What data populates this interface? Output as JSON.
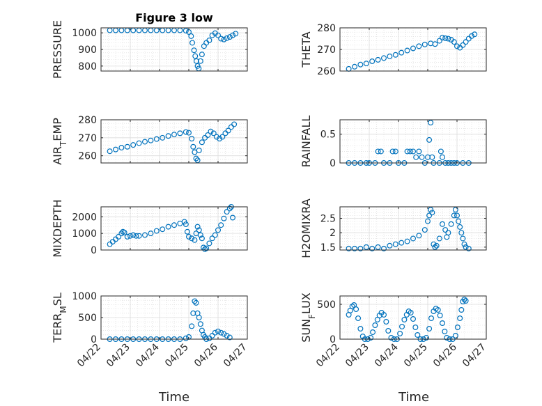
{
  "figure": {
    "title": "Figure 3 low",
    "marker_color": "#0072BD",
    "x_tick_labels": [
      "04/22",
      "04/23",
      "04/24",
      "04/25",
      "04/26",
      "04/27"
    ],
    "x_axis_label": "Time"
  },
  "chart_data": [
    {
      "type": "scatter",
      "ylabel": "PRESSURE",
      "title": "Figure 3 low",
      "x_dates": [
        "04/22",
        "04/23",
        "04/24",
        "04/25",
        "04/26",
        "04/27"
      ],
      "xlim": [
        "04/22",
        "04/27"
      ],
      "ylim": [
        770,
        1030
      ],
      "yticks": [
        800,
        900,
        1000
      ],
      "grid": "on, minor dotted",
      "points": [
        [
          22.3,
          1015
        ],
        [
          22.5,
          1015
        ],
        [
          22.7,
          1015
        ],
        [
          22.9,
          1015
        ],
        [
          23.1,
          1015
        ],
        [
          23.3,
          1015
        ],
        [
          23.5,
          1015
        ],
        [
          23.7,
          1015
        ],
        [
          23.9,
          1015
        ],
        [
          24.1,
          1015
        ],
        [
          24.3,
          1015
        ],
        [
          24.5,
          1015
        ],
        [
          24.7,
          1015
        ],
        [
          24.9,
          1013
        ],
        [
          25.0,
          1005
        ],
        [
          25.08,
          980
        ],
        [
          25.12,
          940
        ],
        [
          25.18,
          895
        ],
        [
          25.22,
          860
        ],
        [
          25.26,
          830
        ],
        [
          25.3,
          800
        ],
        [
          25.34,
          785
        ],
        [
          25.4,
          830
        ],
        [
          25.45,
          870
        ],
        [
          25.52,
          920
        ],
        [
          25.6,
          940
        ],
        [
          25.7,
          955
        ],
        [
          25.8,
          985
        ],
        [
          25.9,
          998
        ],
        [
          26.0,
          985
        ],
        [
          26.1,
          965
        ],
        [
          26.2,
          960
        ],
        [
          26.3,
          968
        ],
        [
          26.4,
          975
        ],
        [
          26.5,
          985
        ],
        [
          26.6,
          995
        ]
      ]
    },
    {
      "type": "scatter",
      "ylabel": "THETA",
      "ylim": [
        260,
        280
      ],
      "yticks": [
        260,
        270,
        280
      ],
      "points": [
        [
          22.3,
          261
        ],
        [
          22.5,
          262
        ],
        [
          22.7,
          263
        ],
        [
          22.9,
          263.5
        ],
        [
          23.1,
          264.5
        ],
        [
          23.3,
          265.2
        ],
        [
          23.5,
          266
        ],
        [
          23.7,
          266.8
        ],
        [
          23.9,
          267.5
        ],
        [
          24.1,
          268.5
        ],
        [
          24.3,
          269.5
        ],
        [
          24.5,
          270.5
        ],
        [
          24.7,
          271.5
        ],
        [
          24.9,
          272.3
        ],
        [
          25.1,
          272.8
        ],
        [
          25.25,
          272.5
        ],
        [
          25.4,
          274
        ],
        [
          25.5,
          275.5
        ],
        [
          25.6,
          275.2
        ],
        [
          25.7,
          275
        ],
        [
          25.8,
          274.5
        ],
        [
          25.9,
          273.5
        ],
        [
          26.0,
          271.5
        ],
        [
          26.1,
          270.8
        ],
        [
          26.2,
          272
        ],
        [
          26.3,
          273.5
        ],
        [
          26.4,
          275
        ],
        [
          26.5,
          276.2
        ],
        [
          26.6,
          277
        ]
      ]
    },
    {
      "type": "scatter",
      "ylabel": "AIR_TEMP",
      "ylim": [
        256,
        280
      ],
      "yticks": [
        260,
        270,
        280
      ],
      "points": [
        [
          22.3,
          262.5
        ],
        [
          22.5,
          263.5
        ],
        [
          22.7,
          264.5
        ],
        [
          22.9,
          265
        ],
        [
          23.1,
          266
        ],
        [
          23.3,
          267
        ],
        [
          23.5,
          267.8
        ],
        [
          23.7,
          268.5
        ],
        [
          23.9,
          269.3
        ],
        [
          24.1,
          270
        ],
        [
          24.3,
          271
        ],
        [
          24.5,
          271.8
        ],
        [
          24.7,
          272.5
        ],
        [
          24.9,
          273.2
        ],
        [
          25.0,
          272.8
        ],
        [
          25.1,
          269.5
        ],
        [
          25.15,
          265
        ],
        [
          25.2,
          262
        ],
        [
          25.25,
          258.5
        ],
        [
          25.3,
          257.5
        ],
        [
          25.35,
          263
        ],
        [
          25.45,
          267.5
        ],
        [
          25.55,
          270
        ],
        [
          25.65,
          271.5
        ],
        [
          25.75,
          273.5
        ],
        [
          25.85,
          272.5
        ],
        [
          25.95,
          270.5
        ],
        [
          26.05,
          269.5
        ],
        [
          26.15,
          270.5
        ],
        [
          26.25,
          272.5
        ],
        [
          26.35,
          274
        ],
        [
          26.45,
          276
        ],
        [
          26.55,
          277.5
        ]
      ]
    },
    {
      "type": "scatter",
      "ylabel": "RAINFALL",
      "ylim": [
        0,
        0.75
      ],
      "yticks": [
        0,
        0.5
      ],
      "points": [
        [
          22.3,
          0
        ],
        [
          22.5,
          0
        ],
        [
          22.7,
          0
        ],
        [
          22.9,
          0
        ],
        [
          23.0,
          0
        ],
        [
          23.2,
          0
        ],
        [
          23.3,
          0.2
        ],
        [
          23.4,
          0.2
        ],
        [
          23.5,
          0
        ],
        [
          23.7,
          0
        ],
        [
          23.8,
          0.2
        ],
        [
          23.9,
          0.2
        ],
        [
          24.0,
          0
        ],
        [
          24.2,
          0
        ],
        [
          24.3,
          0.2
        ],
        [
          24.4,
          0.2
        ],
        [
          24.5,
          0.2
        ],
        [
          24.6,
          0.1
        ],
        [
          24.7,
          0.2
        ],
        [
          24.8,
          0.1
        ],
        [
          24.9,
          0
        ],
        [
          25.0,
          0.1
        ],
        [
          25.05,
          0.4
        ],
        [
          25.1,
          0.7
        ],
        [
          25.15,
          0.1
        ],
        [
          25.2,
          0
        ],
        [
          25.4,
          0
        ],
        [
          25.45,
          0.2
        ],
        [
          25.5,
          0.1
        ],
        [
          25.6,
          0
        ],
        [
          25.7,
          0
        ],
        [
          25.8,
          0
        ],
        [
          25.9,
          0
        ],
        [
          26.0,
          0
        ],
        [
          26.2,
          0
        ],
        [
          26.4,
          0
        ]
      ]
    },
    {
      "type": "scatter",
      "ylabel": "MIXDEPTH",
      "ylim": [
        0,
        2600
      ],
      "yticks": [
        0,
        1000,
        2000
      ],
      "points": [
        [
          22.3,
          350
        ],
        [
          22.4,
          500
        ],
        [
          22.5,
          650
        ],
        [
          22.6,
          800
        ],
        [
          22.7,
          1000
        ],
        [
          22.75,
          1100
        ],
        [
          22.8,
          1050
        ],
        [
          22.9,
          800
        ],
        [
          23.0,
          850
        ],
        [
          23.1,
          900
        ],
        [
          23.2,
          850
        ],
        [
          23.3,
          850
        ],
        [
          23.5,
          900
        ],
        [
          23.7,
          1000
        ],
        [
          23.9,
          1150
        ],
        [
          24.1,
          1250
        ],
        [
          24.3,
          1400
        ],
        [
          24.5,
          1500
        ],
        [
          24.7,
          1600
        ],
        [
          24.85,
          1700
        ],
        [
          24.9,
          1550
        ],
        [
          24.95,
          1100
        ],
        [
          25.0,
          800
        ],
        [
          25.1,
          700
        ],
        [
          25.2,
          600
        ],
        [
          25.25,
          1000
        ],
        [
          25.3,
          1400
        ],
        [
          25.35,
          1200
        ],
        [
          25.4,
          900
        ],
        [
          25.45,
          700
        ],
        [
          25.5,
          150
        ],
        [
          25.55,
          50
        ],
        [
          25.6,
          100
        ],
        [
          25.7,
          400
        ],
        [
          25.8,
          700
        ],
        [
          25.9,
          900
        ],
        [
          26.0,
          1200
        ],
        [
          26.1,
          1500
        ],
        [
          26.2,
          1900
        ],
        [
          26.3,
          2300
        ],
        [
          26.4,
          2500
        ],
        [
          26.45,
          2600
        ],
        [
          26.5,
          1950
        ]
      ]
    },
    {
      "type": "scatter",
      "ylabel": "H2OMIXRA",
      "ylim": [
        1.4,
        2.9
      ],
      "yticks": [
        1.5,
        2,
        2.5
      ],
      "points": [
        [
          22.3,
          1.45
        ],
        [
          22.5,
          1.45
        ],
        [
          22.7,
          1.45
        ],
        [
          22.9,
          1.5
        ],
        [
          23.1,
          1.45
        ],
        [
          23.3,
          1.5
        ],
        [
          23.5,
          1.45
        ],
        [
          23.7,
          1.55
        ],
        [
          23.9,
          1.6
        ],
        [
          24.1,
          1.65
        ],
        [
          24.3,
          1.7
        ],
        [
          24.5,
          1.8
        ],
        [
          24.7,
          1.9
        ],
        [
          24.9,
          2.1
        ],
        [
          25.0,
          2.4
        ],
        [
          25.05,
          2.6
        ],
        [
          25.1,
          2.8
        ],
        [
          25.15,
          2.7
        ],
        [
          25.2,
          1.6
        ],
        [
          25.25,
          1.5
        ],
        [
          25.3,
          1.55
        ],
        [
          25.4,
          1.8
        ],
        [
          25.5,
          2.3
        ],
        [
          25.6,
          2.1
        ],
        [
          25.65,
          1.85
        ],
        [
          25.7,
          2.0
        ],
        [
          25.8,
          2.3
        ],
        [
          25.9,
          2.6
        ],
        [
          25.95,
          2.8
        ],
        [
          26.0,
          2.6
        ],
        [
          26.05,
          2.4
        ],
        [
          26.1,
          2.2
        ],
        [
          26.15,
          2.0
        ],
        [
          26.2,
          1.8
        ],
        [
          26.25,
          1.6
        ],
        [
          26.3,
          1.5
        ],
        [
          26.4,
          1.45
        ]
      ]
    },
    {
      "type": "scatter",
      "ylabel": "TERR_MSL",
      "ylim": [
        0,
        1000
      ],
      "yticks": [
        0,
        500,
        1000
      ],
      "points": [
        [
          22.3,
          0
        ],
        [
          22.5,
          0
        ],
        [
          22.7,
          0
        ],
        [
          22.9,
          0
        ],
        [
          23.1,
          0
        ],
        [
          23.3,
          0
        ],
        [
          23.5,
          0
        ],
        [
          23.7,
          0
        ],
        [
          23.9,
          0
        ],
        [
          24.1,
          0
        ],
        [
          24.3,
          0
        ],
        [
          24.5,
          0
        ],
        [
          24.7,
          0
        ],
        [
          24.9,
          20
        ],
        [
          25.0,
          50
        ],
        [
          25.1,
          300
        ],
        [
          25.15,
          600
        ],
        [
          25.2,
          880
        ],
        [
          25.25,
          840
        ],
        [
          25.3,
          600
        ],
        [
          25.35,
          500
        ],
        [
          25.4,
          350
        ],
        [
          25.45,
          200
        ],
        [
          25.5,
          100
        ],
        [
          25.55,
          50
        ],
        [
          25.6,
          0
        ],
        [
          25.7,
          20
        ],
        [
          25.8,
          80
        ],
        [
          25.9,
          150
        ],
        [
          26.0,
          180
        ],
        [
          26.1,
          150
        ],
        [
          26.2,
          120
        ],
        [
          26.3,
          80
        ],
        [
          26.4,
          40
        ]
      ]
    },
    {
      "type": "scatter",
      "ylabel": "SUN_FLUX",
      "ylim": [
        0,
        620
      ],
      "yticks": [
        0,
        500
      ],
      "points": [
        [
          22.3,
          350
        ],
        [
          22.35,
          410
        ],
        [
          22.42,
          470
        ],
        [
          22.48,
          490
        ],
        [
          22.55,
          430
        ],
        [
          22.62,
          300
        ],
        [
          22.7,
          150
        ],
        [
          22.78,
          40
        ],
        [
          22.85,
          0
        ],
        [
          22.95,
          0
        ],
        [
          23.05,
          20
        ],
        [
          23.12,
          100
        ],
        [
          23.2,
          200
        ],
        [
          23.28,
          280
        ],
        [
          23.35,
          340
        ],
        [
          23.42,
          380
        ],
        [
          23.5,
          350
        ],
        [
          23.58,
          250
        ],
        [
          23.65,
          120
        ],
        [
          23.75,
          20
        ],
        [
          23.85,
          0
        ],
        [
          23.95,
          0
        ],
        [
          24.05,
          80
        ],
        [
          24.12,
          180
        ],
        [
          24.2,
          280
        ],
        [
          24.28,
          350
        ],
        [
          24.35,
          400
        ],
        [
          24.42,
          380
        ],
        [
          24.5,
          290
        ],
        [
          24.58,
          170
        ],
        [
          24.65,
          60
        ],
        [
          24.75,
          0
        ],
        [
          24.85,
          0
        ],
        [
          24.95,
          20
        ],
        [
          25.05,
          150
        ],
        [
          25.12,
          300
        ],
        [
          25.2,
          400
        ],
        [
          25.28,
          440
        ],
        [
          25.35,
          420
        ],
        [
          25.42,
          340
        ],
        [
          25.5,
          230
        ],
        [
          25.58,
          110
        ],
        [
          25.65,
          20
        ],
        [
          25.75,
          0
        ],
        [
          25.85,
          0
        ],
        [
          25.95,
          50
        ],
        [
          26.02,
          170
        ],
        [
          26.1,
          300
        ],
        [
          26.15,
          420
        ],
        [
          26.2,
          540
        ],
        [
          26.25,
          570
        ],
        [
          26.3,
          550
        ]
      ]
    }
  ]
}
